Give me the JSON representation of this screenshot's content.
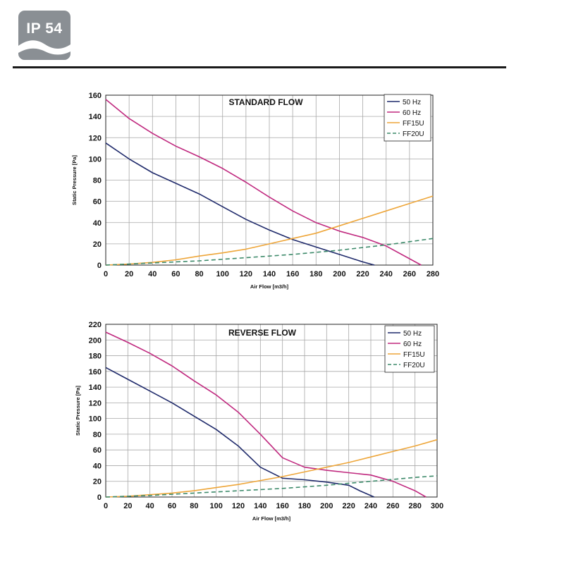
{
  "header": {
    "badge_label": "IP 54"
  },
  "colors": {
    "50 Hz": "#1f2a6b",
    "60 Hz": "#c0297f",
    "FF15U": "#eea63a",
    "FF20U": "#3d8a6a",
    "badge": "#8a8f94"
  },
  "chart_data": [
    {
      "type": "line",
      "title": "STANDARD FLOW",
      "xlabel": "Air Flow [m3/h]",
      "ylabel": "Static Pressure [Pa]",
      "xlim": [
        0,
        280
      ],
      "ylim": [
        0,
        160
      ],
      "xticks": [
        0,
        20,
        40,
        60,
        80,
        100,
        120,
        140,
        160,
        180,
        200,
        220,
        240,
        260,
        280
      ],
      "yticks": [
        0,
        20,
        40,
        60,
        80,
        100,
        120,
        140,
        160
      ],
      "grid": true,
      "legend": "top-right",
      "series": [
        {
          "name": "50 Hz",
          "style": "solid",
          "x": [
            0,
            20,
            40,
            60,
            80,
            100,
            120,
            140,
            160,
            180,
            200,
            220,
            230
          ],
          "y": [
            115,
            100,
            87,
            77,
            67,
            55,
            43,
            33,
            24,
            17,
            10,
            3,
            0
          ]
        },
        {
          "name": "60 Hz",
          "style": "solid",
          "x": [
            0,
            20,
            40,
            60,
            80,
            100,
            120,
            140,
            160,
            180,
            200,
            220,
            240,
            260,
            270
          ],
          "y": [
            156,
            138,
            124,
            112,
            102,
            91,
            78,
            64,
            51,
            40,
            32,
            26,
            18,
            6,
            0
          ]
        },
        {
          "name": "FF15U",
          "style": "solid",
          "x": [
            0,
            20,
            40,
            60,
            80,
            100,
            120,
            140,
            160,
            180,
            200,
            220,
            240,
            260,
            280
          ],
          "y": [
            0,
            1,
            2.5,
            5,
            8.5,
            11.5,
            15,
            20,
            25,
            30,
            37,
            44,
            51,
            58,
            65
          ]
        },
        {
          "name": "FF20U",
          "style": "dashed",
          "x": [
            0,
            40,
            80,
            120,
            160,
            200,
            240,
            280
          ],
          "y": [
            0,
            2,
            4,
            7,
            10,
            14,
            19,
            25
          ]
        }
      ]
    },
    {
      "type": "line",
      "title": "REVERSE FLOW",
      "xlabel": "Air Flow [m3/h]",
      "ylabel": "Static Pressure [Pa]",
      "xlim": [
        0,
        300
      ],
      "ylim": [
        0,
        220
      ],
      "xticks": [
        0,
        20,
        40,
        60,
        80,
        100,
        120,
        140,
        160,
        180,
        200,
        220,
        240,
        260,
        280,
        300
      ],
      "yticks": [
        0,
        20,
        40,
        60,
        80,
        100,
        120,
        140,
        160,
        180,
        200,
        220
      ],
      "grid": true,
      "legend": "top-right",
      "series": [
        {
          "name": "50 Hz",
          "style": "solid",
          "x": [
            0,
            20,
            40,
            60,
            80,
            100,
            120,
            140,
            160,
            180,
            200,
            220,
            230,
            243
          ],
          "y": [
            165,
            150,
            135,
            120,
            103,
            86,
            65,
            38,
            24,
            22,
            19,
            15,
            8,
            0
          ]
        },
        {
          "name": "60 Hz",
          "style": "solid",
          "x": [
            0,
            20,
            40,
            60,
            80,
            100,
            120,
            140,
            160,
            180,
            200,
            220,
            240,
            260,
            280,
            290
          ],
          "y": [
            210,
            197,
            183,
            167,
            148,
            130,
            108,
            80,
            50,
            38,
            34,
            31,
            28,
            20,
            8,
            0
          ]
        },
        {
          "name": "FF15U",
          "style": "solid",
          "x": [
            0,
            20,
            40,
            60,
            80,
            100,
            120,
            140,
            160,
            180,
            200,
            220,
            240,
            260,
            280,
            300
          ],
          "y": [
            0,
            1,
            3,
            5,
            8,
            12,
            16,
            21,
            26,
            32,
            38,
            44,
            51,
            58,
            65,
            73
          ]
        },
        {
          "name": "FF20U",
          "style": "dashed",
          "x": [
            0,
            40,
            80,
            120,
            160,
            200,
            240,
            280,
            300
          ],
          "y": [
            0,
            2,
            5,
            8,
            11,
            15,
            20,
            25,
            27
          ]
        }
      ]
    }
  ]
}
